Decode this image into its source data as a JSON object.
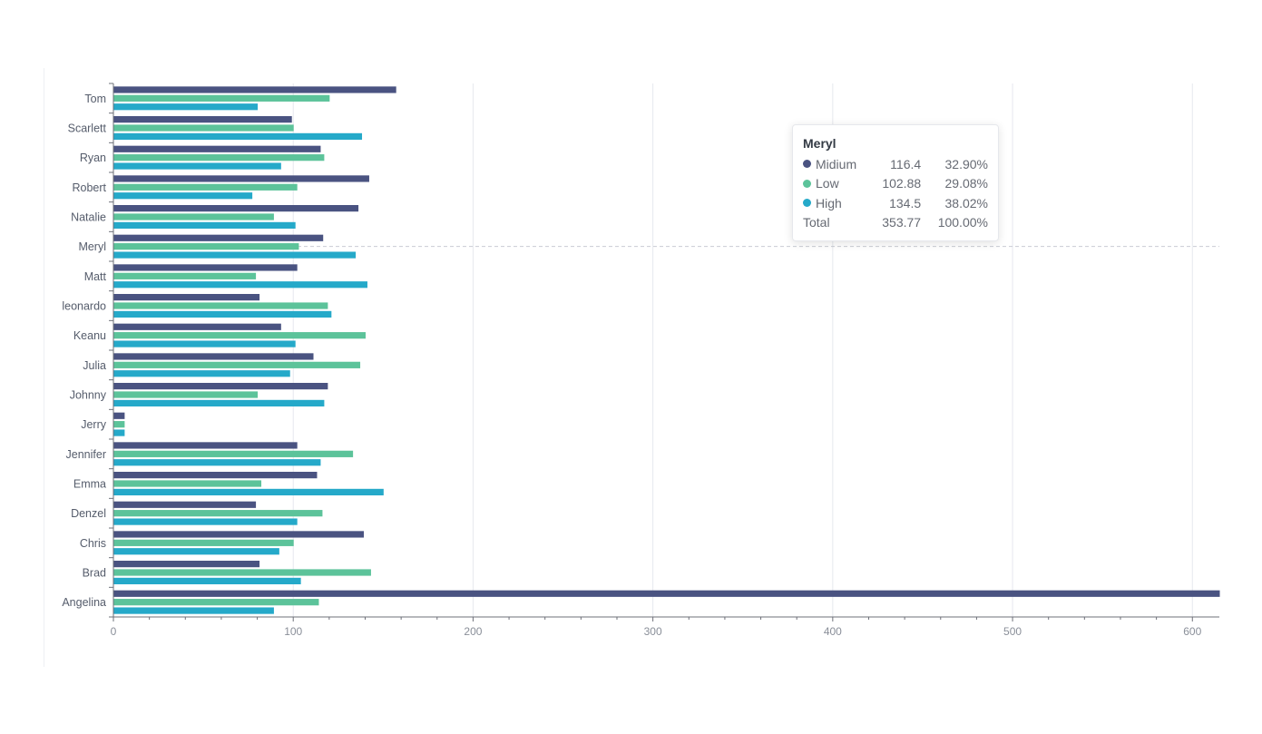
{
  "chart_data": {
    "type": "bar",
    "orientation": "horizontal",
    "categories": [
      "Tom",
      "Scarlett",
      "Ryan",
      "Robert",
      "Natalie",
      "Meryl",
      "Matt",
      "leonardo",
      "Keanu",
      "Julia",
      "Johnny",
      "Jerry",
      "Jennifer",
      "Emma",
      "Denzel",
      "Chris",
      "Brad",
      "Angelina"
    ],
    "series": [
      {
        "name": "Midium",
        "color": "#4a5381",
        "values": [
          157,
          99,
          115,
          142,
          136,
          116.4,
          102,
          81,
          93,
          111,
          119,
          6,
          102,
          113,
          79,
          139,
          81,
          615
        ]
      },
      {
        "name": "Low",
        "color": "#5cc39a",
        "values": [
          120,
          100,
          117,
          102,
          89,
          102.88,
          79,
          119,
          140,
          137,
          80,
          6,
          133,
          82,
          116,
          100,
          143,
          114
        ]
      },
      {
        "name": "High",
        "color": "#25a9c9",
        "values": [
          80,
          138,
          93,
          77,
          101,
          134.5,
          141,
          121,
          101,
          98,
          117,
          6,
          115,
          150,
          102,
          92,
          104,
          89
        ]
      }
    ],
    "xlim": [
      0,
      615
    ],
    "x_ticks": [
      0,
      100,
      200,
      300,
      400,
      500,
      600
    ],
    "grid": true,
    "title": "",
    "xlabel": "",
    "ylabel": "",
    "highlighted_category": "Meryl"
  },
  "tooltip": {
    "title": "Meryl",
    "rows": [
      {
        "name": "Midium",
        "value": "116.4",
        "percent": "32.90%",
        "color": "#4a5381"
      },
      {
        "name": "Low",
        "value": "102.88",
        "percent": "29.08%",
        "color": "#5cc39a"
      },
      {
        "name": "High",
        "value": "134.5",
        "percent": "38.02%",
        "color": "#25a9c9"
      }
    ],
    "total": {
      "name": "Total",
      "value": "353.77",
      "percent": "100.00%"
    }
  }
}
